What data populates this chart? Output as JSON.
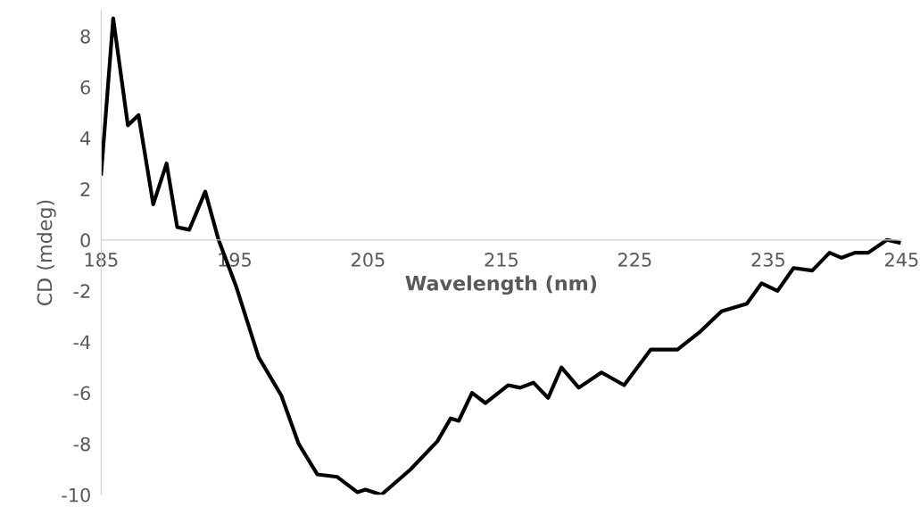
{
  "chart_data": {
    "type": "line",
    "xlabel": "Wavelength (nm)",
    "ylabel": "CD (mdeg)",
    "xlim": [
      185,
      245
    ],
    "xticks": [
      185,
      195,
      205,
      215,
      225,
      235,
      245
    ],
    "ylim": [
      -10,
      9
    ],
    "yticks": [
      -10,
      -8,
      -6,
      -4,
      -2,
      0,
      2,
      4,
      6,
      8
    ],
    "grid": false,
    "legend": false,
    "marker": "none",
    "line_style": "solid",
    "series": [
      {
        "color": "#000000",
        "x": [
          185,
          185.9,
          187,
          187.8,
          188.9,
          189.9,
          190.7,
          191.6,
          192.8,
          193.8,
          195.1,
          196.8,
          198.5,
          199.8,
          201.2,
          202.7,
          204.2,
          204.8,
          206.0,
          208.2,
          210.2,
          211.2,
          211.8,
          212.8,
          213.8,
          215.5,
          216.4,
          217.4,
          218.5,
          219.5,
          220.8,
          222.5,
          224.2,
          226.2,
          228.2,
          229.9,
          231.5,
          233.4,
          234.5,
          235.7,
          236.9,
          238.3,
          239.6,
          240.5,
          241.5,
          242.5,
          243.9,
          244.8
        ],
        "values": [
          2.6,
          8.7,
          4.5,
          4.9,
          1.4,
          3.0,
          0.5,
          0.4,
          1.9,
          0,
          -1.8,
          -4.6,
          -6.1,
          -8.0,
          -9.2,
          -9.3,
          -9.9,
          -9.8,
          -10.0,
          -9.0,
          -7.9,
          -7.0,
          -7.1,
          -6.0,
          -6.4,
          -5.7,
          -5.8,
          -5.6,
          -6.2,
          -5.0,
          -5.8,
          -5.2,
          -5.7,
          -4.3,
          -4.3,
          -3.6,
          -2.8,
          -2.5,
          -1.7,
          -2.0,
          -1.1,
          -1.2,
          -0.5,
          -0.7,
          -0.5,
          -0.5,
          0.0,
          -0.1
        ]
      }
    ]
  }
}
